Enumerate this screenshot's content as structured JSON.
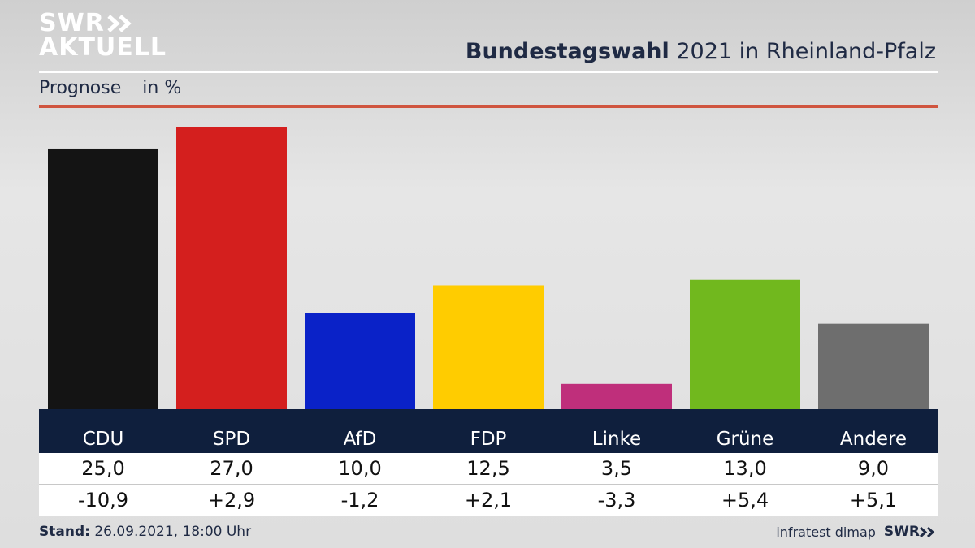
{
  "logo": {
    "line1": "SWR",
    "line2": "AKTUELL"
  },
  "header": {
    "title_bold": "Bundestagswahl",
    "title_rest": " 2021 in Rheinland-Pfalz"
  },
  "subtitle": {
    "label": "Prognose",
    "unit": "in %"
  },
  "footer": {
    "stand_label": "Stand:",
    "stand_value": " 26.09.2021, 18:00 Uhr",
    "source": "infratest dimap",
    "brand": "SWR"
  },
  "colors": {
    "CDU": "#141414",
    "SPD": "#d41f1e",
    "AfD": "#0a22c8",
    "FDP": "#ffcc00",
    "Linke": "#bf2f7b",
    "Grüne": "#71b81e",
    "Andere": "#6e6e6e",
    "accent_rule": "#d0553f",
    "table_header": "#0f1f3d"
  },
  "chart_data": {
    "type": "bar",
    "title": "Bundestagswahl 2021 in Rheinland-Pfalz",
    "subtitle": "Prognose in %",
    "categories": [
      "CDU",
      "SPD",
      "AfD",
      "FDP",
      "Linke",
      "Grüne",
      "Andere"
    ],
    "values": [
      25.0,
      27.0,
      10.0,
      12.5,
      3.5,
      13.0,
      9.0
    ],
    "values_label": [
      "25,0",
      "27,0",
      "10,0",
      "12,5",
      "3,5",
      "13,0",
      "9,0"
    ],
    "changes": [
      -10.9,
      2.9,
      -1.2,
      2.1,
      -3.3,
      5.4,
      5.1
    ],
    "changes_label": [
      "-10,9",
      "+2,9",
      "-1,2",
      "+2,1",
      "-3,3",
      "+5,4",
      "+5,1"
    ],
    "ylim": [
      0,
      27
    ],
    "xlabel": "",
    "ylabel": ""
  }
}
